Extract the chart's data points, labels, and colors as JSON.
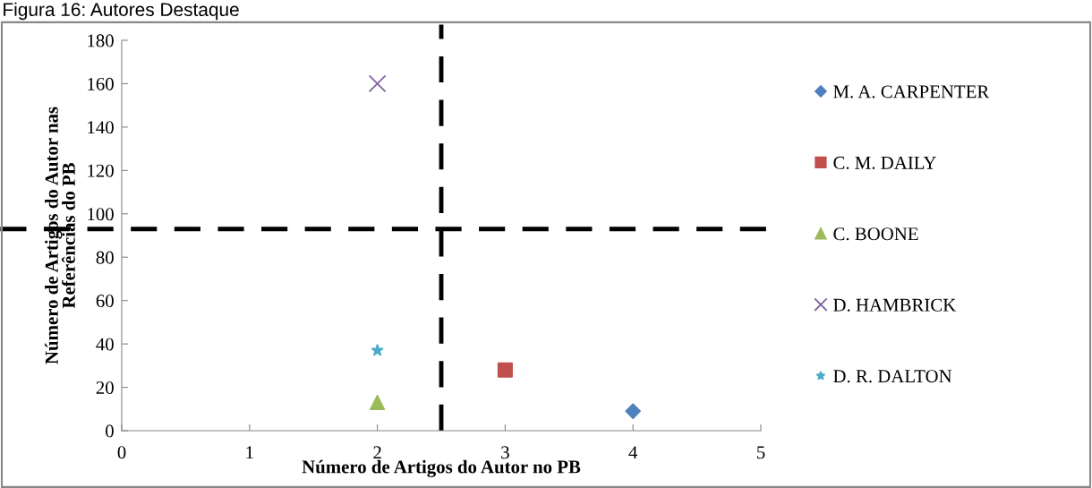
{
  "chart_data": {
    "type": "scatter",
    "title": "Figura 16: Autores Destaque",
    "xlabel": "Número de Artigos do Autor no PB",
    "ylabel": "Número de Artigos do Autor nas\nReferências do PB",
    "xlim": [
      0,
      5
    ],
    "xticks": [
      0,
      1,
      2,
      3,
      4,
      5
    ],
    "ylim": [
      0,
      180
    ],
    "yticks": [
      0,
      20,
      40,
      60,
      80,
      100,
      120,
      140,
      160,
      180
    ],
    "grid": false,
    "legend": "right",
    "series": [
      {
        "name": "M. A. CARPENTER",
        "color": "#4f81bd",
        "marker": "diamond",
        "x": [
          4
        ],
        "values": [
          9
        ]
      },
      {
        "name": "C. M. DAILY",
        "color": "#c0504d",
        "marker": "square",
        "x": [
          3
        ],
        "values": [
          28
        ]
      },
      {
        "name": "C. BOONE",
        "color": "#9bbb59",
        "marker": "triangle",
        "x": [
          2
        ],
        "values": [
          13
        ]
      },
      {
        "name": "D. HAMBRICK",
        "color": "#8064a2",
        "marker": "cross",
        "x": [
          2
        ],
        "values": [
          160
        ]
      },
      {
        "name": "D. R. DALTON",
        "color": "#4bacc6",
        "marker": "star",
        "x": [
          2
        ],
        "values": [
          37
        ]
      }
    ],
    "ref_lines": [
      {
        "axis": "x",
        "value": 2.5,
        "color": "#000000",
        "line_style": "dashed"
      },
      {
        "axis": "y",
        "value": 93,
        "color": "#000000",
        "line_style": "dashed"
      }
    ]
  }
}
